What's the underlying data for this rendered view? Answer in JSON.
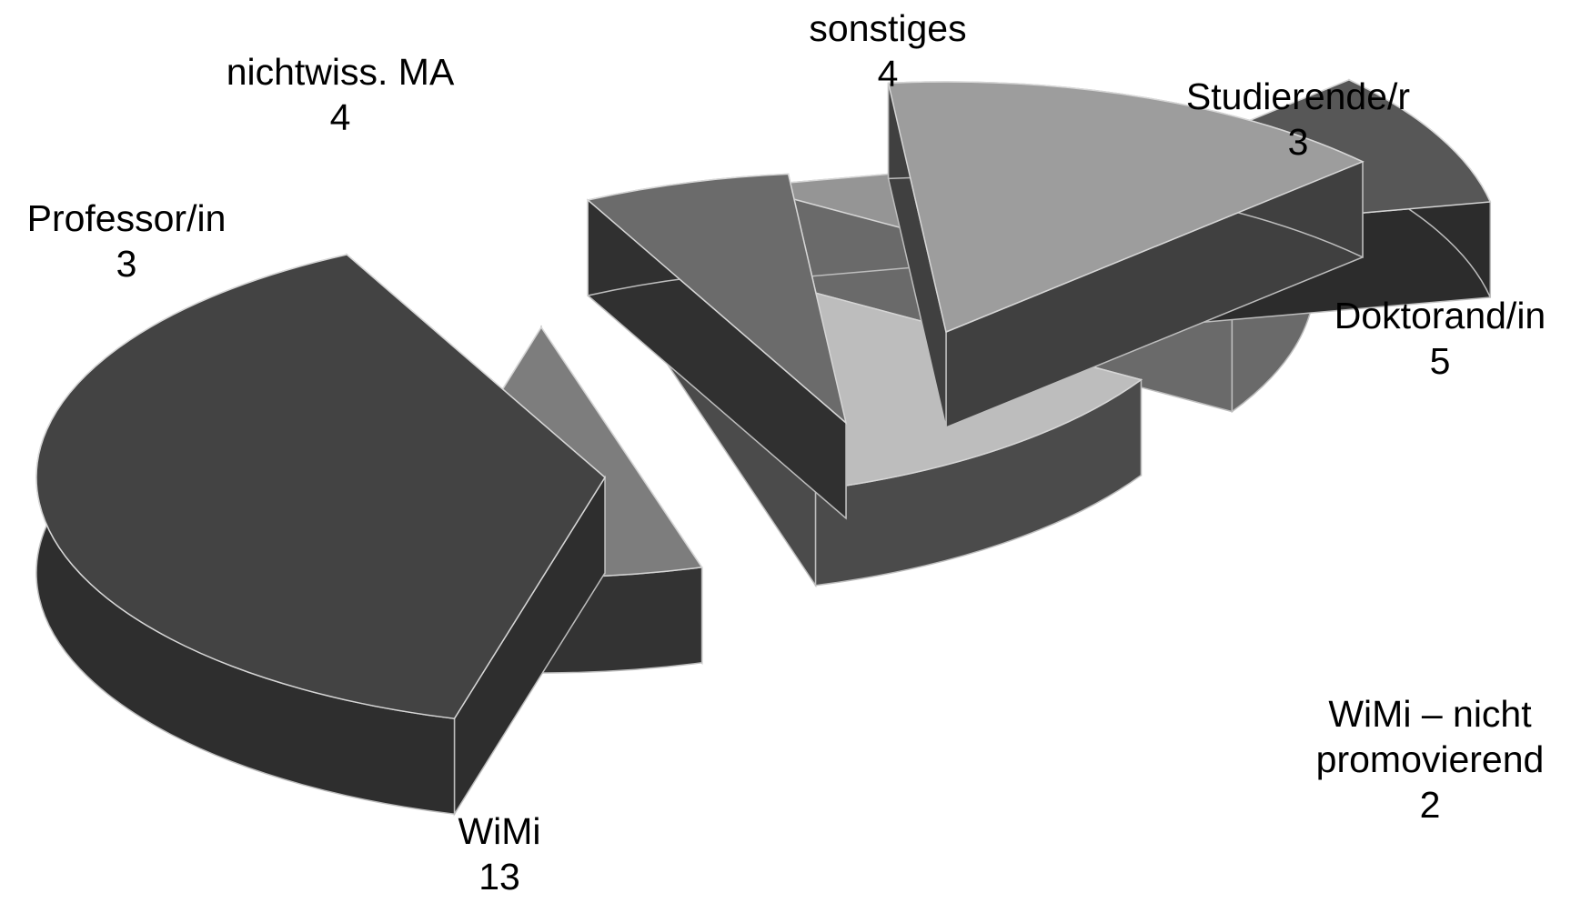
{
  "chart_data": {
    "type": "pie",
    "style": "3d-exploded",
    "slices": [
      {
        "label": "WiMi",
        "value": 13,
        "top": "#434343",
        "side": "#2e2e2e"
      },
      {
        "label": "Professor/in",
        "value": 3,
        "top": "#7d7d7d",
        "side": "#333333"
      },
      {
        "label": "nichtwiss. MA",
        "value": 4,
        "top": "#bdbdbd",
        "side": "#4b4b4b"
      },
      {
        "label": "sonstiges",
        "value": 4,
        "top": "#959595",
        "side": "#6a6a6a"
      },
      {
        "label": "Studierende/r",
        "value": 3,
        "top": "#575757",
        "side": "#2c2c2c"
      },
      {
        "label": "Doktorand/in",
        "value": 5,
        "top": "#9d9d9d",
        "side": "#404040"
      },
      {
        "label": "WiMi – nicht promovierend",
        "value": 2,
        "top": "#6b6b6b",
        "side": "#303030"
      }
    ]
  }
}
